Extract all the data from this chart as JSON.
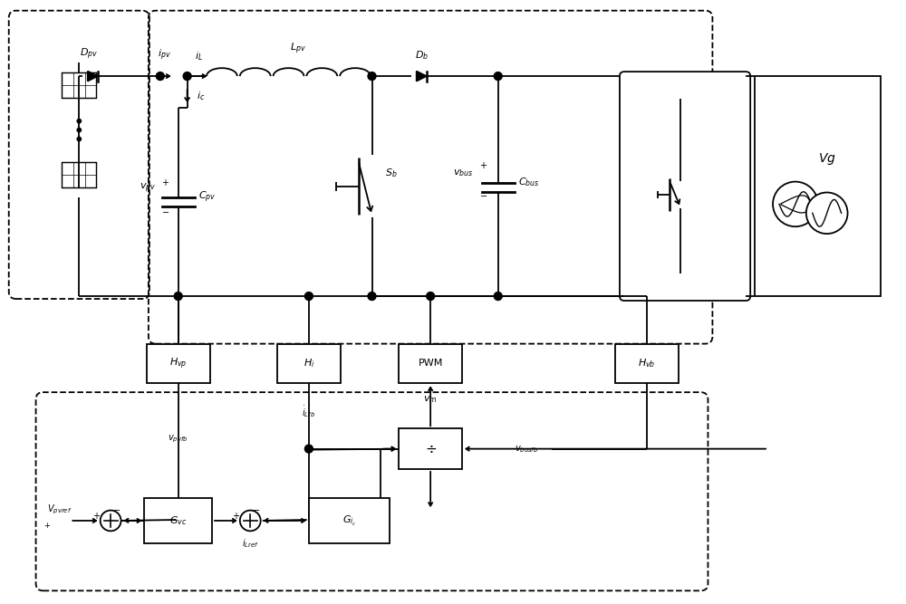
{
  "bg_color": "#ffffff",
  "lw": 1.3,
  "fontsize_label": 8,
  "fontsize_small": 7
}
